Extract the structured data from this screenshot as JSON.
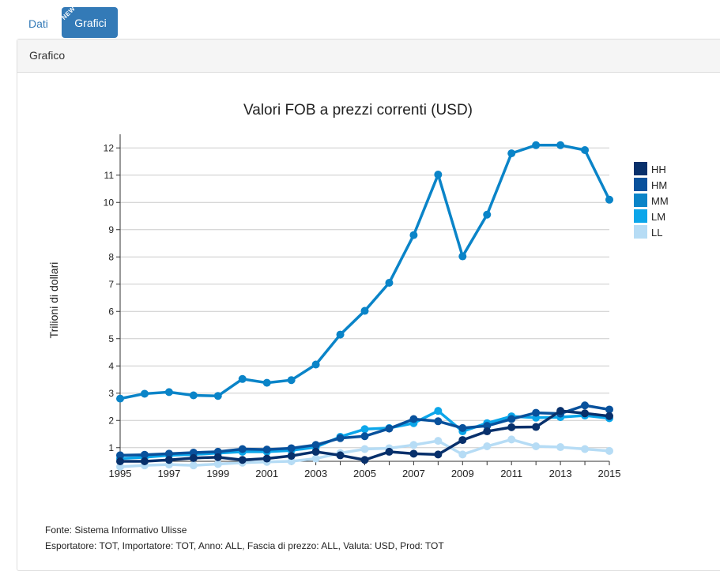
{
  "tabs": [
    {
      "label": "Dati"
    },
    {
      "label": "Grafici",
      "badge": "NEW"
    }
  ],
  "panel": {
    "title": "Grafico"
  },
  "footer": {
    "source": "Fonte: Sistema Informativo Ulisse",
    "params": "Esportatore: TOT, Importatore: TOT, Anno: ALL, Fascia di prezzo: ALL, Valuta: USD, Prod: TOT"
  },
  "chart_data": {
    "type": "line",
    "title": "Valori FOB a prezzi correnti (USD)",
    "xlabel": "",
    "ylabel": "Trilioni di dollari",
    "x": [
      1995,
      1996,
      1997,
      1998,
      1999,
      2000,
      2001,
      2002,
      2003,
      2004,
      2005,
      2006,
      2007,
      2008,
      2009,
      2010,
      2011,
      2012,
      2013,
      2014,
      2015
    ],
    "xticks": [
      "1995",
      "1997",
      "1999",
      "2001",
      "2003",
      "2005",
      "2007",
      "2009",
      "2011",
      "2013",
      "2015"
    ],
    "yticks": [
      1,
      2,
      3,
      4,
      5,
      6,
      7,
      8,
      9,
      10,
      11,
      12
    ],
    "ylim": [
      0.5,
      12.5
    ],
    "grid": true,
    "legend_position": "right",
    "series": [
      {
        "name": "HH",
        "color": "#08306b",
        "values": [
          0.5,
          0.5,
          0.55,
          0.62,
          0.65,
          0.55,
          0.6,
          0.7,
          0.85,
          0.72,
          0.55,
          0.85,
          0.78,
          0.75,
          1.28,
          1.6,
          1.75,
          1.76,
          2.35,
          2.26,
          2.16
        ]
      },
      {
        "name": "HM",
        "color": "#08519c",
        "values": [
          0.72,
          0.74,
          0.78,
          0.82,
          0.85,
          0.95,
          0.93,
          0.98,
          1.1,
          1.35,
          1.42,
          1.7,
          2.05,
          1.97,
          1.72,
          1.8,
          2.05,
          2.28,
          2.25,
          2.55,
          2.4
        ]
      },
      {
        "name": "MM",
        "color": "#0a84c8",
        "values": [
          2.8,
          2.98,
          3.04,
          2.92,
          2.9,
          3.52,
          3.38,
          3.48,
          4.05,
          5.15,
          6.02,
          7.05,
          8.8,
          11.02,
          8.02,
          9.55,
          11.8,
          12.1,
          12.1,
          11.92,
          10.1
        ]
      },
      {
        "name": "LM",
        "color": "#0ba6ea",
        "values": [
          0.6,
          0.65,
          0.72,
          0.75,
          0.8,
          0.85,
          0.85,
          0.9,
          1.02,
          1.4,
          1.68,
          1.72,
          1.9,
          2.35,
          1.6,
          1.9,
          2.15,
          2.1,
          2.12,
          2.18,
          2.08
        ]
      },
      {
        "name": "LL",
        "color": "#b6dcf5",
        "values": [
          0.3,
          0.35,
          0.38,
          0.35,
          0.4,
          0.45,
          0.48,
          0.5,
          0.6,
          0.8,
          0.95,
          0.98,
          1.1,
          1.25,
          0.75,
          1.05,
          1.3,
          1.05,
          1.02,
          0.95,
          0.88
        ]
      }
    ]
  }
}
